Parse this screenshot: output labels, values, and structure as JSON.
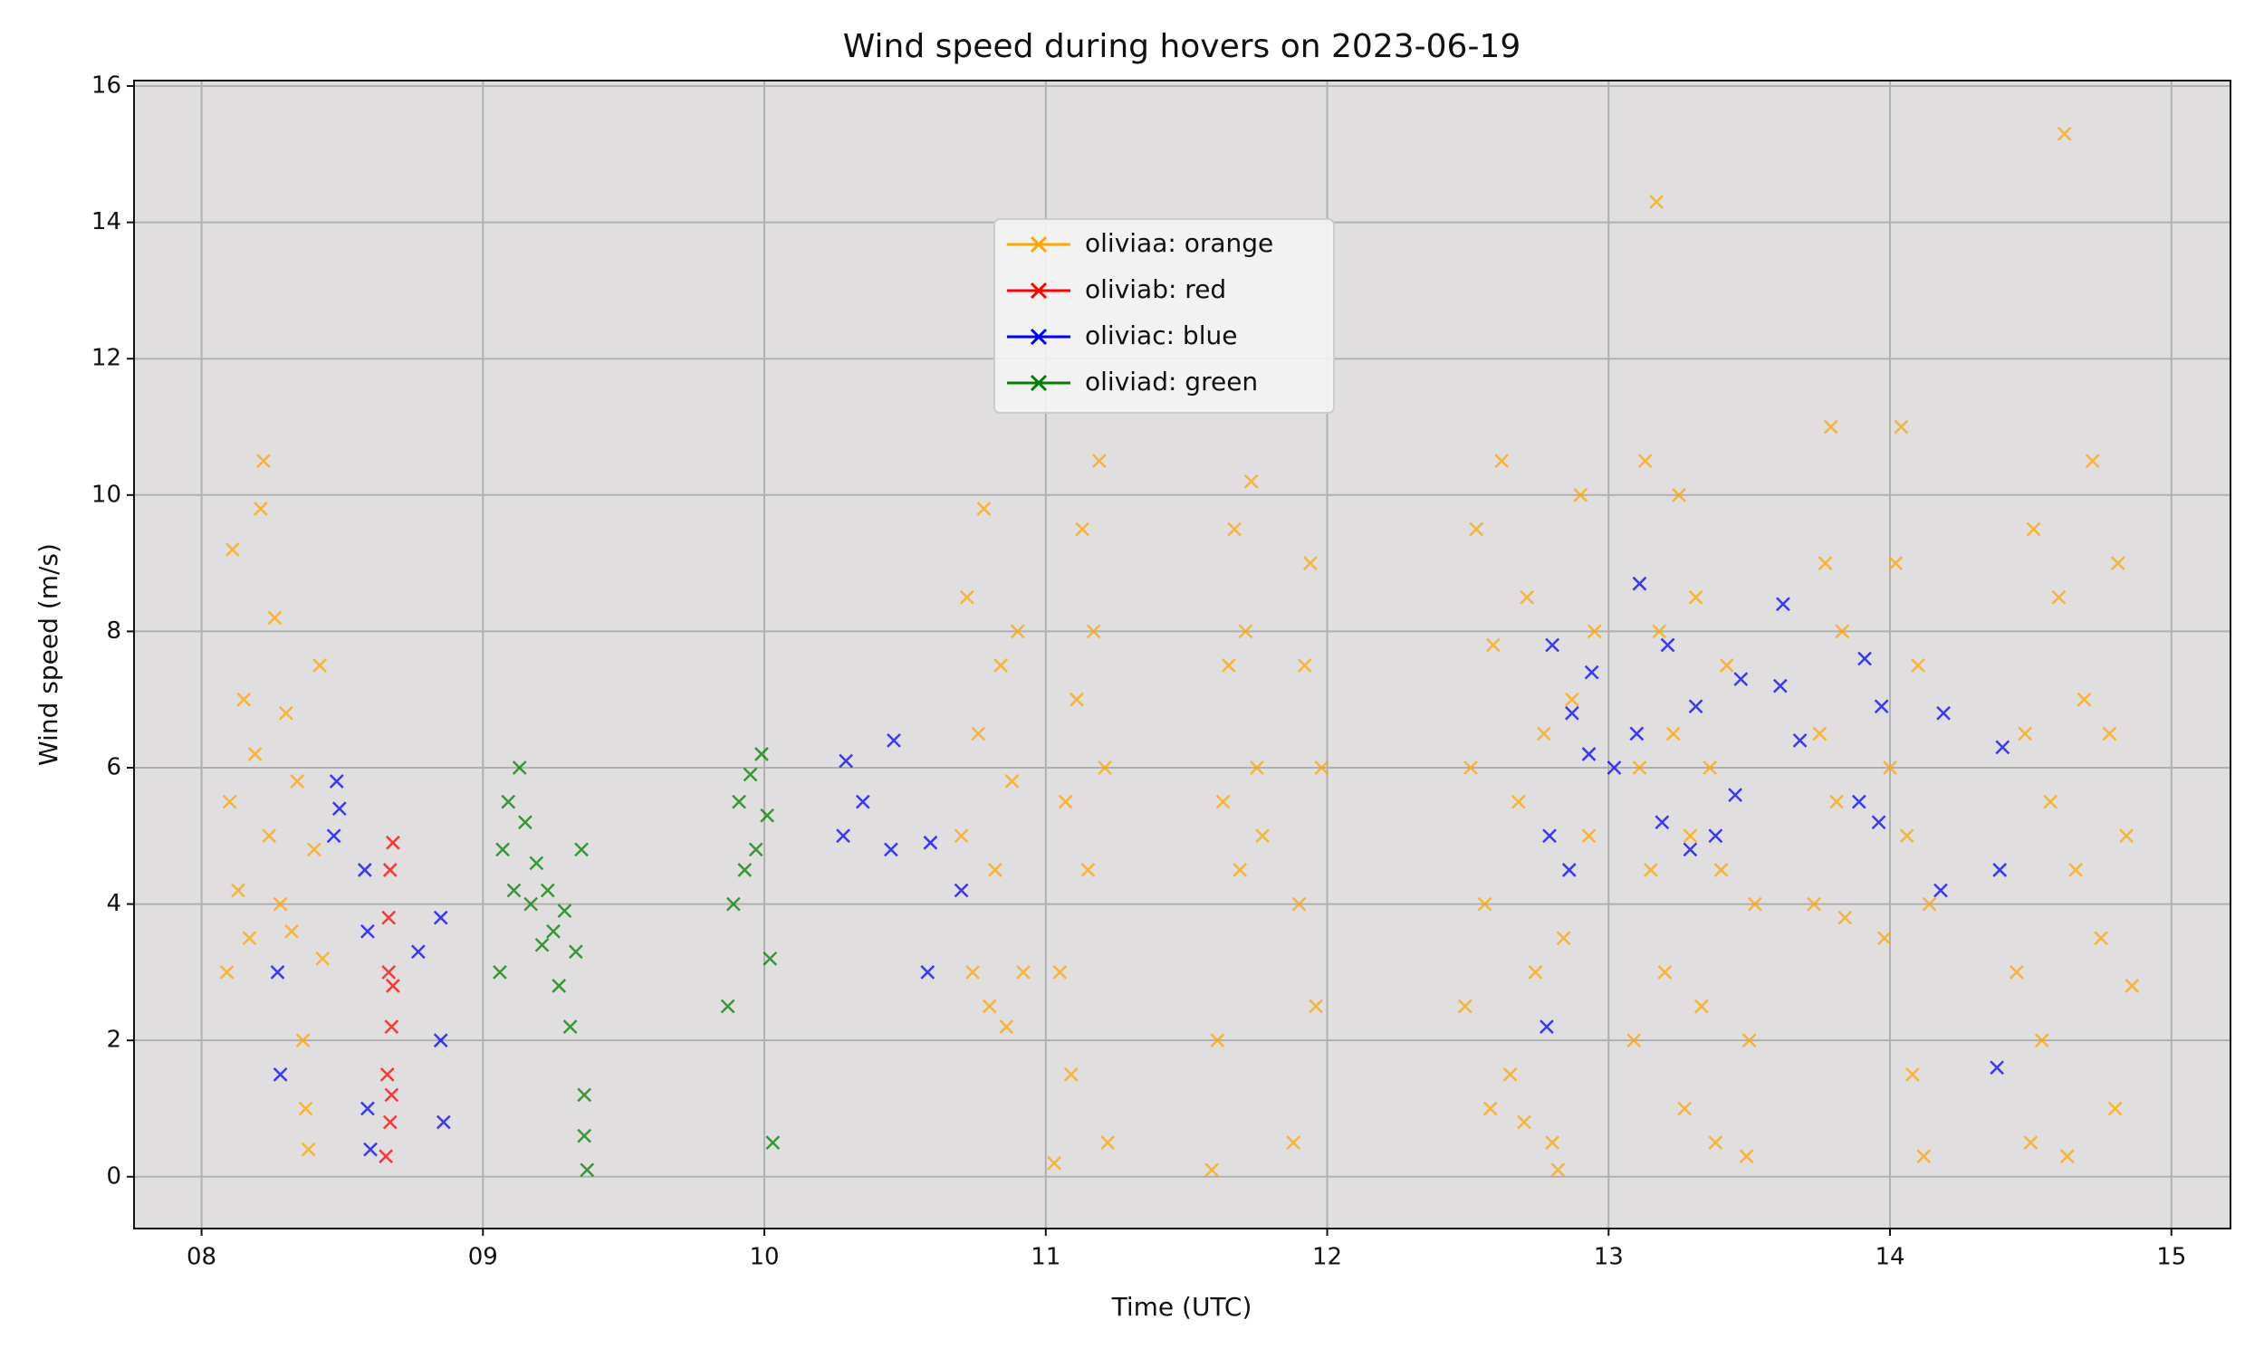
{
  "chart_data": {
    "type": "scatter",
    "title": "Wind speed during hovers on 2023-06-19",
    "x_label": "Time (UTC)",
    "y_label": "Wind speed (m/s)",
    "xlim": [
      7.76,
      15.21
    ],
    "ylim": [
      -0.76,
      16.08
    ],
    "xticks": [
      {
        "value": 8,
        "label": "08"
      },
      {
        "value": 9,
        "label": "09"
      },
      {
        "value": 10,
        "label": "10"
      },
      {
        "value": 11,
        "label": "11"
      },
      {
        "value": 12,
        "label": "12"
      },
      {
        "value": 13,
        "label": "13"
      },
      {
        "value": 14,
        "label": "14"
      },
      {
        "value": 15,
        "label": "15"
      }
    ],
    "yticks": [
      0,
      2,
      4,
      6,
      8,
      10,
      12,
      14,
      16
    ],
    "grid": true,
    "legend": "upper center",
    "series": [
      {
        "name": "oliviaa: orange",
        "color": "orange",
        "x": [
          8.09,
          8.1,
          8.11,
          8.13,
          8.15,
          8.17,
          8.19,
          8.21,
          8.22,
          8.24,
          8.26,
          8.28,
          8.3,
          8.32,
          8.34,
          8.36,
          8.37,
          8.38,
          8.4,
          8.42,
          8.43,
          10.7,
          10.72,
          10.74,
          10.76,
          10.78,
          10.8,
          10.82,
          10.84,
          10.86,
          10.88,
          10.9,
          10.92,
          11.03,
          11.05,
          11.07,
          11.09,
          11.11,
          11.13,
          11.15,
          11.17,
          11.19,
          11.21,
          11.22,
          11.59,
          11.61,
          11.63,
          11.65,
          11.67,
          11.69,
          11.71,
          11.73,
          11.75,
          11.77,
          11.88,
          11.9,
          11.92,
          11.94,
          11.96,
          11.98,
          12.49,
          12.51,
          12.53,
          12.56,
          12.59,
          12.62,
          12.65,
          12.68,
          12.71,
          12.74,
          12.77,
          12.8,
          12.82,
          12.84,
          12.87,
          12.9,
          12.93,
          12.95,
          12.58,
          12.7,
          13.09,
          13.11,
          13.13,
          13.15,
          13.18,
          13.2,
          13.23,
          13.25,
          13.27,
          13.29,
          13.31,
          13.33,
          13.36,
          13.38,
          13.4,
          13.42,
          13.17,
          13.49,
          13.5,
          13.52,
          13.73,
          13.75,
          13.77,
          13.79,
          13.81,
          13.83,
          13.84,
          13.98,
          14.0,
          14.02,
          14.04,
          14.06,
          14.08,
          14.1,
          14.12,
          14.14,
          14.45,
          14.48,
          14.51,
          14.54,
          14.57,
          14.6,
          14.62,
          14.63,
          14.66,
          14.69,
          14.72,
          14.75,
          14.78,
          14.81,
          14.84,
          14.86,
          14.5,
          14.8
        ],
        "values": [
          3.0,
          5.5,
          9.2,
          4.2,
          7.0,
          3.5,
          6.2,
          9.8,
          10.5,
          5.0,
          8.2,
          4.0,
          6.8,
          3.6,
          5.8,
          2.0,
          1.0,
          0.4,
          4.8,
          7.5,
          3.2,
          5.0,
          8.5,
          3.0,
          6.5,
          9.8,
          2.5,
          4.5,
          7.5,
          2.2,
          5.8,
          8.0,
          3.0,
          0.2,
          3.0,
          5.5,
          1.5,
          7.0,
          9.5,
          4.5,
          8.0,
          10.5,
          6.0,
          0.5,
          0.1,
          2.0,
          5.5,
          7.5,
          9.5,
          4.5,
          8.0,
          10.2,
          6.0,
          5.0,
          0.5,
          4.0,
          7.5,
          9.0,
          2.5,
          6.0,
          2.5,
          6.0,
          9.5,
          4.0,
          7.8,
          10.5,
          1.5,
          5.5,
          8.5,
          3.0,
          6.5,
          0.5,
          0.1,
          3.5,
          7.0,
          10.0,
          5.0,
          8.0,
          1.0,
          0.8,
          2.0,
          6.0,
          10.5,
          4.5,
          8.0,
          3.0,
          6.5,
          10.0,
          1.0,
          5.0,
          8.5,
          2.5,
          6.0,
          0.5,
          4.5,
          7.5,
          14.3,
          0.3,
          2.0,
          4.0,
          4.0,
          6.5,
          9.0,
          11.0,
          5.5,
          8.0,
          3.8,
          3.5,
          6.0,
          9.0,
          11.0,
          5.0,
          1.5,
          7.5,
          0.3,
          4.0,
          3.0,
          6.5,
          9.5,
          2.0,
          5.5,
          8.5,
          15.3,
          0.3,
          4.5,
          7.0,
          10.5,
          3.5,
          6.5,
          9.0,
          5.0,
          2.8,
          0.5,
          1.0
        ]
      },
      {
        "name": "oliviab: red",
        "color": "red",
        "x": [
          8.655,
          8.66,
          8.665,
          8.67,
          8.675,
          8.68,
          8.67,
          8.665,
          8.675,
          8.68
        ],
        "values": [
          0.3,
          1.5,
          3.0,
          4.5,
          2.2,
          4.9,
          0.8,
          3.8,
          1.2,
          2.8
        ]
      },
      {
        "name": "oliviac: blue",
        "color": "blue",
        "x": [
          8.27,
          8.28,
          8.47,
          8.48,
          8.49,
          8.58,
          8.59,
          8.6,
          8.59,
          8.77,
          8.85,
          8.85,
          8.86,
          10.28,
          10.29,
          10.35,
          10.45,
          10.46,
          10.58,
          10.59,
          10.7,
          12.78,
          12.79,
          12.8,
          12.86,
          12.87,
          12.93,
          12.94,
          13.02,
          13.1,
          13.11,
          13.19,
          13.21,
          13.29,
          13.31,
          13.38,
          13.45,
          13.47,
          13.61,
          13.62,
          13.68,
          13.89,
          13.91,
          13.96,
          13.97,
          14.18,
          14.19,
          14.38,
          14.39,
          14.4
        ],
        "values": [
          3.0,
          1.5,
          5.0,
          5.8,
          5.4,
          4.5,
          3.6,
          0.4,
          1.0,
          3.3,
          2.0,
          3.8,
          0.8,
          5.0,
          6.1,
          5.5,
          4.8,
          6.4,
          3.0,
          4.9,
          4.2,
          2.2,
          5.0,
          7.8,
          4.5,
          6.8,
          6.2,
          7.4,
          6.0,
          6.5,
          8.7,
          5.2,
          7.8,
          4.8,
          6.9,
          5.0,
          5.6,
          7.3,
          7.2,
          8.4,
          6.4,
          5.5,
          7.6,
          5.2,
          6.9,
          4.2,
          6.8,
          1.6,
          4.5,
          6.3
        ]
      },
      {
        "name": "oliviad: green",
        "color": "green",
        "x": [
          9.06,
          9.07,
          9.09,
          9.11,
          9.13,
          9.15,
          9.17,
          9.19,
          9.21,
          9.23,
          9.25,
          9.27,
          9.29,
          9.31,
          9.33,
          9.35,
          9.36,
          9.37,
          9.36,
          9.87,
          9.89,
          9.91,
          9.93,
          9.95,
          9.97,
          9.99,
          10.01,
          10.02,
          10.03
        ],
        "values": [
          3.0,
          4.8,
          5.5,
          4.2,
          6.0,
          5.2,
          4.0,
          4.6,
          3.4,
          4.2,
          3.6,
          2.8,
          3.9,
          2.2,
          3.3,
          4.8,
          1.2,
          0.1,
          0.6,
          2.5,
          4.0,
          5.5,
          4.5,
          5.9,
          4.8,
          6.2,
          5.3,
          3.2,
          0.5
        ]
      }
    ]
  }
}
